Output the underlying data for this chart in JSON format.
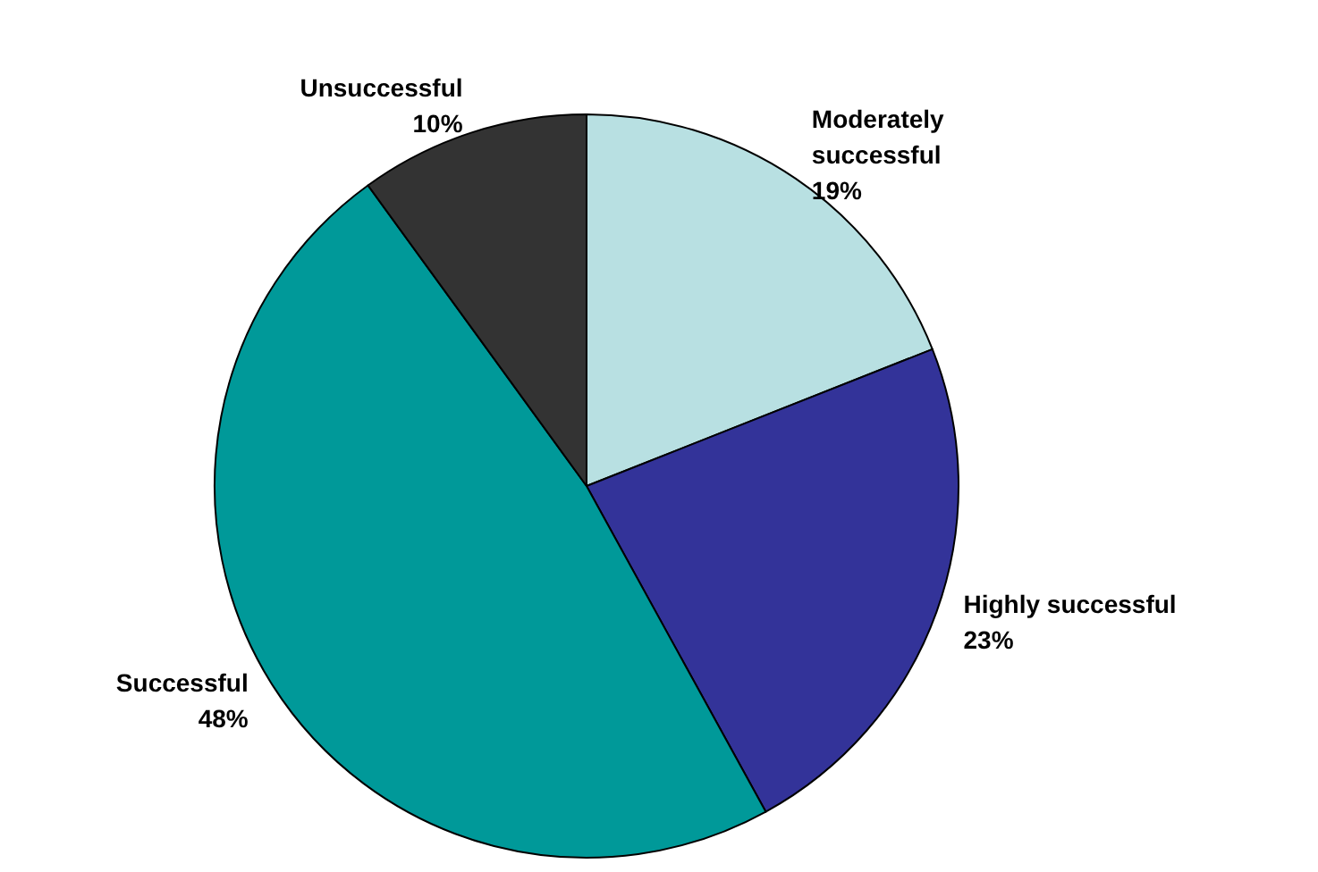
{
  "chart_data": {
    "type": "pie",
    "categories": [
      "Moderately successful",
      "Highly successful",
      "Successful",
      "Unsuccessful"
    ],
    "values": [
      19,
      23,
      48,
      10
    ],
    "colors": [
      "#b8e0e2",
      "#333399",
      "#009999",
      "#333333"
    ],
    "value_labels": [
      "19%",
      "23%",
      "48%",
      "10%"
    ],
    "legend": false
  }
}
